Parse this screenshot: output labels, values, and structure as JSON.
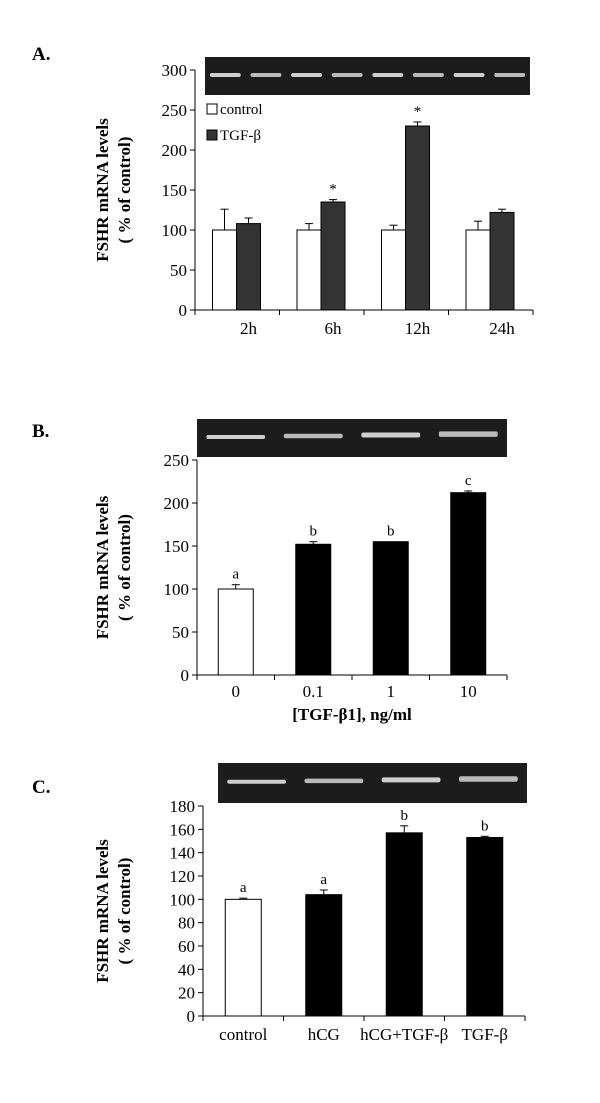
{
  "chart_data": [
    {
      "panel": "A.",
      "type": "bar",
      "ylabel_line1": "FSHR  mRNA levels",
      "ylabel_line2": "( % of control)",
      "xlabel": "",
      "ylim": [
        0,
        300
      ],
      "yticks": [
        0,
        50,
        100,
        150,
        200,
        250,
        300
      ],
      "categories": [
        "2h",
        "6h",
        "12h",
        "24h"
      ],
      "series": [
        {
          "name": "control",
          "color": "#ffffff",
          "values": [
            100,
            100,
            100,
            100
          ],
          "errors": [
            26,
            8,
            6,
            11
          ],
          "labels": [
            "",
            "",
            "",
            ""
          ]
        },
        {
          "name": "TGF-β",
          "color": "#333333",
          "values": [
            108,
            135,
            230,
            122
          ],
          "errors": [
            7,
            3,
            5,
            4
          ],
          "labels": [
            "",
            "*",
            "*",
            ""
          ]
        }
      ],
      "legend": "top-left",
      "gel_bands": 8
    },
    {
      "panel": "B.",
      "type": "bar",
      "ylabel_line1": "FSHR  mRNA levels",
      "ylabel_line2": "( % of control)",
      "xlabel": "[TGF-β1], ng/ml",
      "ylim": [
        0,
        250
      ],
      "yticks": [
        0,
        50,
        100,
        150,
        200,
        250
      ],
      "categories": [
        "0",
        "0.1",
        "1",
        "10"
      ],
      "values": [
        100,
        152,
        155,
        212
      ],
      "errors": [
        5,
        3,
        0,
        2
      ],
      "colors": [
        "#ffffff",
        "#000000",
        "#000000",
        "#000000"
      ],
      "labels": [
        "a",
        "b",
        "b",
        "c"
      ],
      "gel_bands": 4
    },
    {
      "panel": "C.",
      "type": "bar",
      "ylabel_line1": "FSHR  mRNA levels",
      "ylabel_line2": "( % of control)",
      "xlabel": "",
      "ylim": [
        0,
        180
      ],
      "yticks": [
        0,
        20,
        40,
        60,
        80,
        100,
        120,
        140,
        160,
        180
      ],
      "categories": [
        "control",
        "hCG",
        "hCG+TGF-β",
        "TGF-β"
      ],
      "values": [
        100,
        104,
        157,
        153
      ],
      "errors": [
        1,
        4,
        6,
        1
      ],
      "colors": [
        "#ffffff",
        "#000000",
        "#000000",
        "#000000"
      ],
      "labels": [
        "a",
        "a",
        "b",
        "b"
      ],
      "gel_bands": 4
    }
  ]
}
